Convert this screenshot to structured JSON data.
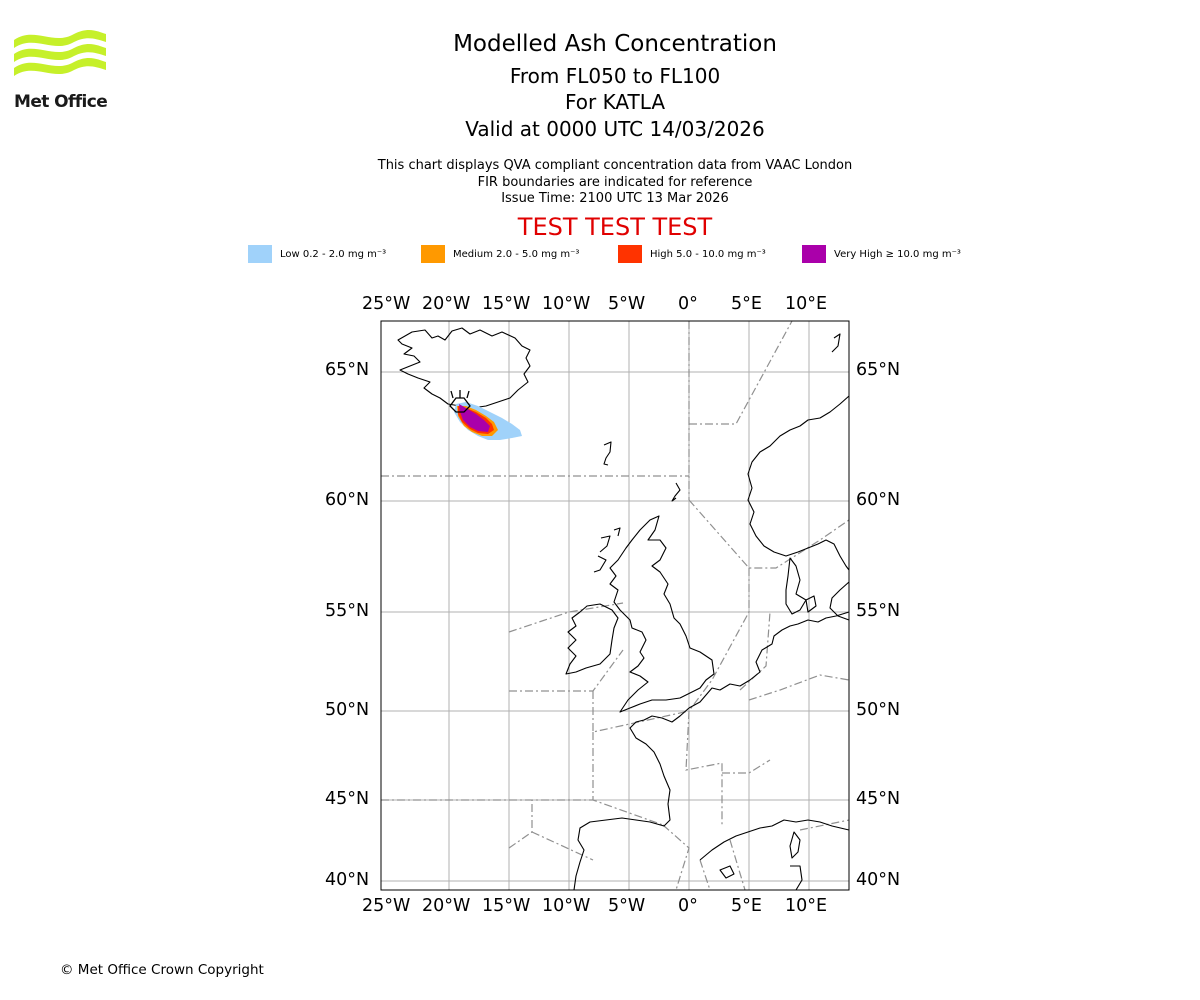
{
  "logo": {
    "text": "Met Office",
    "color": "#c6f02a"
  },
  "header": {
    "title": "Modelled Ash Concentration",
    "flight_levels": "From FL050 to FL100",
    "volcano": "For KATLA",
    "valid_time": "Valid at 0000 UTC 14/03/2026"
  },
  "info": {
    "line1": "This chart displays QVA compliant concentration data from VAAC London",
    "line2": "FIR boundaries are indicated for reference",
    "line3": "Issue Time: 2100 UTC 13 Mar 2026"
  },
  "test_banner": "TEST TEST TEST",
  "legend": [
    {
      "label": "Low 0.2 - 2.0 mg m⁻³",
      "color": "#a0d2fa"
    },
    {
      "label": "Medium 2.0 - 5.0 mg m⁻³",
      "color": "#ff9900"
    },
    {
      "label": "High 5.0 - 10.0 mg m⁻³",
      "color": "#ff3300"
    },
    {
      "label": "Very High ≥ 10.0 mg m⁻³",
      "color": "#aa00aa"
    }
  ],
  "map": {
    "lon_ticks": [
      "25°W",
      "20°W",
      "15°W",
      "10°W",
      "5°W",
      "0°",
      "5°E",
      "10°E"
    ],
    "lat_ticks": [
      "65°N",
      "60°N",
      "55°N",
      "50°N",
      "45°N",
      "40°N"
    ]
  },
  "copyright": "© Met Office Crown Copyright"
}
